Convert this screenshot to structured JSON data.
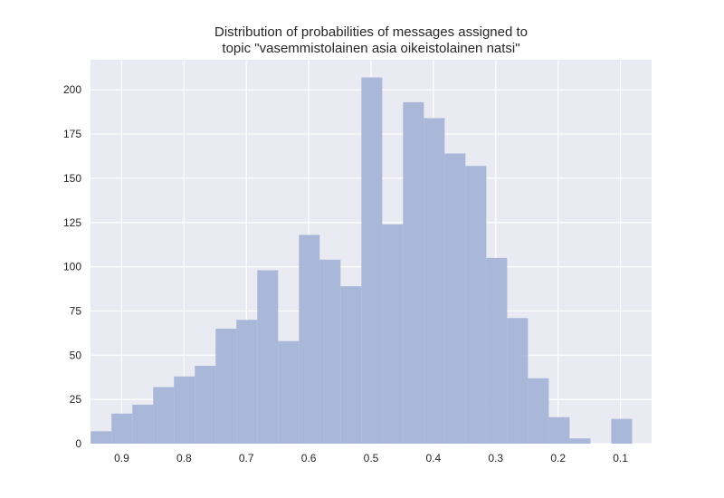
{
  "chart_data": {
    "type": "bar",
    "title": "Distribution of probabilities of messages assigned to\ntopic \"vasemmistolainen asia oikeistolainen natsi\"",
    "xlabel": "",
    "ylabel": "",
    "x_inverted": true,
    "xlim": [
      0.95,
      0.05
    ],
    "ylim": [
      0,
      217
    ],
    "bin_width": 0.0334,
    "x_ticks": [
      0.9,
      0.8,
      0.7,
      0.6,
      0.5,
      0.4,
      0.3,
      0.2,
      0.1
    ],
    "x_tick_labels": [
      "0.9",
      "0.8",
      "0.7",
      "0.6",
      "0.5",
      "0.4",
      "0.3",
      "0.2",
      "0.1"
    ],
    "y_ticks": [
      0,
      25,
      50,
      75,
      100,
      125,
      150,
      175,
      200
    ],
    "y_tick_labels": [
      "0",
      "25",
      "50",
      "75",
      "100",
      "125",
      "150",
      "175",
      "200"
    ],
    "bins_left_edge": [
      0.9497,
      0.9163,
      0.8829,
      0.8495,
      0.8161,
      0.7827,
      0.7493,
      0.7159,
      0.6825,
      0.6491,
      0.6157,
      0.5823,
      0.5489,
      0.5155,
      0.4821,
      0.4487,
      0.4153,
      0.3819,
      0.3485,
      0.3151,
      0.2817,
      0.2483,
      0.2149,
      0.1815,
      0.1481,
      0.1147,
      0.0813
    ],
    "values": [
      7,
      17,
      22,
      32,
      38,
      44,
      65,
      70,
      98,
      58,
      118,
      104,
      89,
      207,
      124,
      193,
      184,
      164,
      157,
      105,
      71,
      37,
      15,
      3,
      0,
      14
    ],
    "grid": true,
    "colors": {
      "bar": "#a5b5d6",
      "plot_bg": "#eaeaf2",
      "grid": "#ffffff",
      "text": "#262626"
    }
  }
}
